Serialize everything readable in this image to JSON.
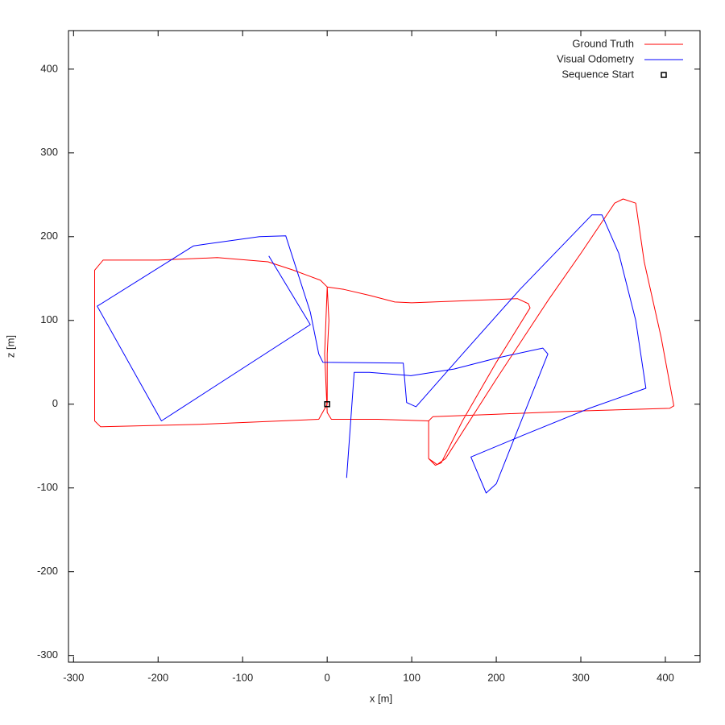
{
  "chart_data": {
    "type": "line",
    "xlabel": "x [m]",
    "ylabel": "z [m]",
    "xlim": [
      -306,
      441
    ],
    "ylim": [
      -308,
      446
    ],
    "xticks": [
      -300,
      -200,
      -100,
      0,
      100,
      200,
      300,
      400
    ],
    "yticks": [
      -300,
      -200,
      -100,
      0,
      100,
      200,
      300,
      400
    ],
    "legend": "top-right",
    "series": [
      {
        "name": "Ground Truth",
        "color": "#ff0000",
        "x": [
          0,
          0,
          2,
          0,
          20,
          50,
          80,
          100,
          150,
          225,
          238,
          240,
          200,
          160,
          135,
          128,
          120,
          120,
          125,
          200,
          300,
          405,
          410,
          395,
          375,
          365,
          350,
          340,
          300,
          262,
          200,
          140,
          130,
          120,
          120,
          60,
          5,
          0,
          -3,
          0,
          -8,
          -40,
          -70,
          -130,
          -200,
          -265,
          -275,
          -275,
          -268,
          -150,
          -10,
          0
        ],
        "y": [
          0,
          60,
          100,
          140,
          137,
          130,
          122,
          121,
          123,
          126,
          120,
          115,
          50,
          -20,
          -70,
          -73,
          -65,
          -20,
          -15,
          -12,
          -8,
          -5,
          -2,
          80,
          170,
          240,
          245,
          240,
          180,
          125,
          30,
          -65,
          -72,
          -65,
          -20,
          -18,
          -18,
          -10,
          60,
          140,
          148,
          160,
          170,
          175,
          172,
          172,
          160,
          -20,
          -27,
          -24,
          -18,
          0
        ]
      },
      {
        "name": "Visual Odometry",
        "color": "#0000ff",
        "x": [
          -69,
          -20,
          -196,
          -272,
          -158,
          -80,
          -49,
          -20,
          -10,
          -5,
          90,
          94,
          105,
          160,
          228,
          313,
          325,
          345,
          365,
          377,
          310,
          232,
          170,
          175,
          188,
          200,
          261,
          255,
          200,
          150,
          99,
          50,
          32,
          23
        ],
        "y": [
          177,
          95,
          -20,
          117,
          189,
          200,
          201,
          110,
          60,
          50,
          49,
          2,
          -3,
          60,
          137,
          226,
          226,
          180,
          100,
          19,
          -5,
          -37,
          -63,
          -75,
          -106,
          -95,
          60,
          67,
          55,
          42,
          34,
          38,
          38,
          -88
        ]
      },
      {
        "name": "Sequence Start",
        "color": "#000000",
        "marker": "square",
        "x": [
          0
        ],
        "y": [
          0
        ]
      }
    ]
  }
}
